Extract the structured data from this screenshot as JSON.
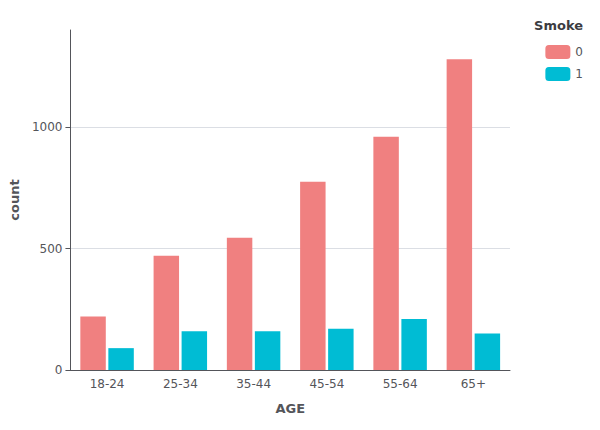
{
  "chart_data": {
    "type": "bar",
    "categories": [
      "18-24",
      "25-34",
      "35-44",
      "45-54",
      "55-64",
      "65+"
    ],
    "series": [
      {
        "name": "0",
        "color": "#F08080",
        "values": [
          220,
          470,
          545,
          775,
          960,
          1280
        ]
      },
      {
        "name": "1",
        "color": "#00BCD4",
        "values": [
          90,
          160,
          160,
          170,
          210,
          150
        ]
      }
    ],
    "xlabel": "AGE",
    "ylabel": "count",
    "legend_title": "Smoke",
    "legend": "upper right",
    "ylim": [
      0,
      1400
    ],
    "yticks": [
      0,
      500,
      1000
    ],
    "grid": true
  }
}
